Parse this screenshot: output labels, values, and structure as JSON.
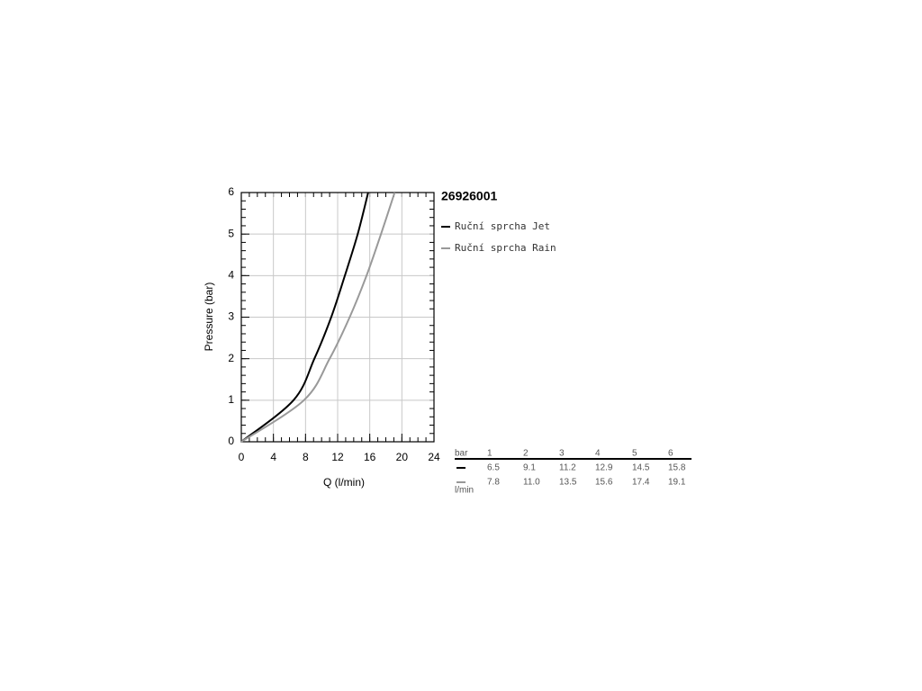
{
  "chart_data": {
    "type": "line",
    "title": "26926001",
    "x_label": "Q (l/min)",
    "y_label": "Pressure (bar)",
    "xlim": [
      0,
      24
    ],
    "xticks": [
      0,
      4,
      8,
      12,
      16,
      20,
      24
    ],
    "ylim": [
      0,
      6
    ],
    "yticks": [
      0,
      1,
      2,
      3,
      4,
      5,
      6
    ],
    "grid": true,
    "series": [
      {
        "name": "Ruční sprcha Jet",
        "color": "#000000",
        "x": [
          0,
          6.5,
          9.1,
          11.2,
          12.9,
          14.5,
          15.8
        ],
        "values": [
          0,
          1,
          2,
          3,
          4,
          5,
          6
        ]
      },
      {
        "name": "Ruční sprcha Rain",
        "color": "#999999",
        "x": [
          0,
          7.8,
          {
            "value": 11,
            "label": "11.0"
          },
          13.5,
          15.6,
          17.4,
          19.1
        ],
        "values": [
          0,
          1,
          2,
          3,
          4,
          5,
          6
        ]
      }
    ],
    "table": {
      "y_unit": "bar",
      "x_unit": "l/min"
    }
  }
}
